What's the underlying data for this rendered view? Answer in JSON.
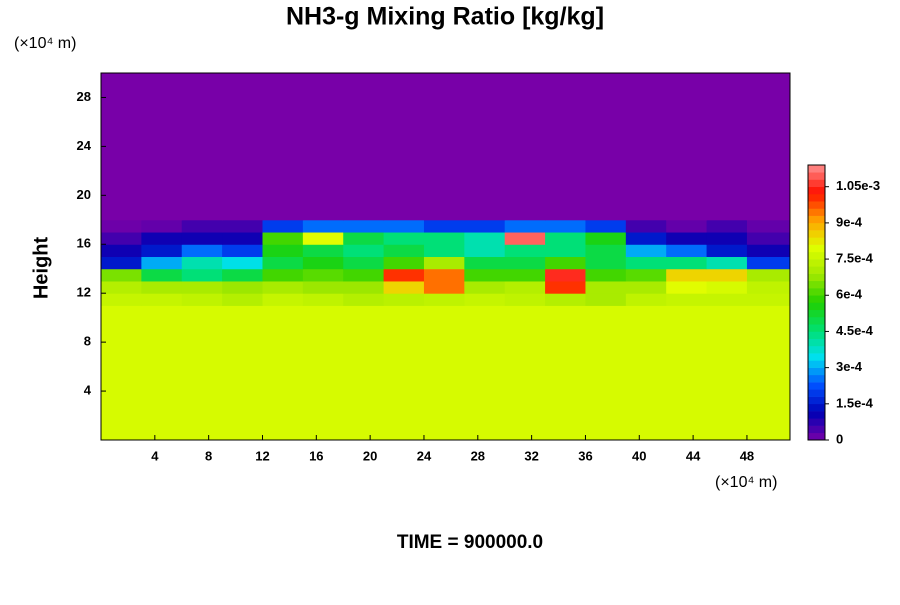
{
  "chart_data": {
    "type": "heatmap",
    "title": "NH3-g Mixing Ratio [kg/kg]",
    "y_label": "Height",
    "x_unit": "(×10⁴ m)",
    "y_unit": "(×10⁴ m)",
    "annotation": "TIME = 900000.0",
    "xlim": [
      0,
      51.2
    ],
    "ylim": [
      0,
      30
    ],
    "xticks": [
      4,
      8,
      12,
      16,
      20,
      24,
      28,
      32,
      36,
      40,
      44,
      48
    ],
    "yticks": [
      4,
      8,
      12,
      16,
      20,
      24,
      28
    ],
    "xbins": [
      0,
      3,
      6,
      9,
      12,
      15,
      18,
      21,
      24,
      27,
      30,
      33,
      36,
      39,
      42,
      45,
      48,
      51.2
    ],
    "ybins": [
      0,
      11,
      12,
      13,
      14,
      15,
      16,
      17,
      18,
      30
    ],
    "z": [
      [
        0.00078,
        0.00078,
        0.00078,
        0.00078,
        0.00078,
        0.00078,
        0.00078,
        0.00078,
        0.00078,
        0.00078,
        0.00078,
        0.00078,
        0.00078,
        0.00078,
        0.00078,
        0.00078,
        0.00078
      ],
      [
        0.00075,
        0.00075,
        0.00074,
        0.00072,
        0.00075,
        0.00074,
        0.00072,
        0.00073,
        0.00074,
        0.00075,
        0.00074,
        0.00072,
        0.0007,
        0.00074,
        0.00075,
        0.00075,
        0.00075
      ],
      [
        0.00072,
        0.0007,
        0.0007,
        0.00068,
        0.0007,
        0.00068,
        0.00068,
        0.00085,
        0.00095,
        0.0007,
        0.00072,
        0.001,
        0.0007,
        0.0007,
        0.0008,
        0.00078,
        0.00074
      ],
      [
        0.00065,
        0.0005,
        0.00045,
        0.0005,
        0.0006,
        0.00062,
        0.0006,
        0.001,
        0.00095,
        0.0006,
        0.0006,
        0.00105,
        0.0006,
        0.00062,
        0.00085,
        0.00085,
        0.0007
      ],
      [
        0.00015,
        0.0003,
        0.0004,
        0.00035,
        0.0005,
        0.00055,
        0.0005,
        0.0006,
        0.0007,
        0.0005,
        0.0005,
        0.0006,
        0.0005,
        0.00045,
        0.00045,
        0.0004,
        0.0002
      ],
      [
        0.0001,
        0.00015,
        0.00025,
        0.0002,
        0.00055,
        0.0005,
        0.00045,
        0.0005,
        0.00045,
        0.0004,
        0.00045,
        0.00045,
        0.0005,
        0.0003,
        0.00025,
        0.00015,
        0.0001
      ],
      [
        5e-05,
        0.0001,
        0.0001,
        0.0001,
        0.0006,
        0.0008,
        0.0005,
        0.00045,
        0.00045,
        0.0004,
        0.0011,
        0.00045,
        0.00055,
        0.00015,
        0.0001,
        0.0001,
        5e-05
      ],
      [
        1e-05,
        2e-05,
        5e-05,
        5e-05,
        0.0002,
        0.00025,
        0.00025,
        0.00025,
        0.0002,
        0.0002,
        0.00025,
        0.00025,
        0.0002,
        5e-05,
        2e-05,
        5e-05,
        2e-05
      ],
      [
        0,
        0,
        0,
        0,
        0,
        0,
        0,
        0,
        0,
        0,
        0,
        0,
        0,
        0,
        0,
        0,
        0
      ]
    ],
    "zlim": [
      0,
      0.00114
    ],
    "zticks": [
      0,
      {
        "value": 0.00015,
        "label": "1.5e-4"
      },
      {
        "value": 0.0003,
        "label": "3e-4"
      },
      {
        "value": 0.00045,
        "label": "4.5e-4"
      },
      {
        "value": 0.0006,
        "label": "6e-4"
      },
      {
        "value": 0.00075,
        "label": "7.5e-4"
      },
      {
        "value": 0.0009,
        "label": "9e-4"
      },
      {
        "value": 0.00105,
        "label": "1.05e-3"
      }
    ],
    "colormap": [
      "#7800a8",
      "#0000b4",
      "#0050ff",
      "#00e0f0",
      "#00e070",
      "#20d000",
      "#a0e800",
      "#e0ff00",
      "#ffa000",
      "#ff1000",
      "#ff9090"
    ]
  }
}
